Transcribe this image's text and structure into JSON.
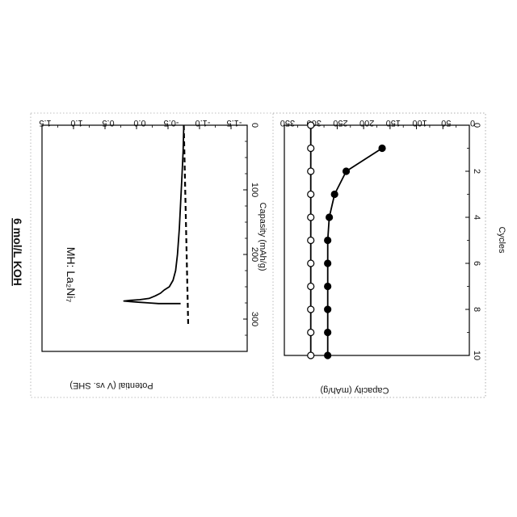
{
  "figure": {
    "title": "6 mol/L KOH",
    "annotation": "MH: La₂Ni₇"
  },
  "chart_data": [
    {
      "type": "line",
      "xlabel": "Capasity (mAh/g)",
      "ylabel": "Potential (V vs. SHE)",
      "xlim": [
        0,
        350
      ],
      "ylim": [
        -1.5,
        1.5
      ],
      "xticks": [
        "0",
        "100",
        "200",
        "300"
      ],
      "yticks": [
        "1.5",
        "1.0",
        "0.5",
        "0.0",
        "-0.5",
        "-1.0",
        "-1.5"
      ],
      "series": [
        {
          "style": "solid",
          "x": [
            0,
            40,
            80,
            120,
            160,
            200,
            225,
            240,
            250,
            255,
            260,
            264,
            268,
            270,
            271,
            272,
            273,
            274,
            275,
            276,
            276,
            276
          ],
          "y": [
            -0.75,
            -0.74,
            -0.72,
            -0.7,
            -0.68,
            -0.65,
            -0.62,
            -0.58,
            -0.52,
            -0.44,
            -0.38,
            -0.3,
            -0.2,
            -0.05,
            0.1,
            0.2,
            0.1,
            -0.05,
            -0.2,
            -0.35,
            -0.55,
            -0.7
          ]
        },
        {
          "style": "dashed",
          "x": [
            0,
            310
          ],
          "y": [
            -0.75,
            -0.82
          ]
        }
      ]
    },
    {
      "type": "line",
      "xlabel": "Cycles",
      "ylabel": "Capacity (mAh/g)",
      "xlim": [
        0,
        10
      ],
      "ylim": [
        0,
        350
      ],
      "xticks": [
        "0",
        "2",
        "4",
        "6",
        "8",
        "10"
      ],
      "yticks": [
        "350",
        "300",
        "250",
        "200",
        "150",
        "100",
        "50",
        "0"
      ],
      "series": [
        {
          "marker": "open-circle",
          "x": [
            0,
            1,
            2,
            3,
            4,
            5,
            6,
            7,
            8,
            9,
            10
          ],
          "y": [
            300,
            300,
            300,
            300,
            300,
            300,
            300,
            300,
            300,
            300,
            300
          ]
        },
        {
          "marker": "filled-circle",
          "x": [
            1,
            2,
            3,
            4,
            5,
            6,
            7,
            8,
            9,
            10
          ],
          "y": [
            165,
            233,
            255,
            265,
            268,
            268,
            268,
            268,
            268,
            268
          ]
        }
      ]
    }
  ]
}
